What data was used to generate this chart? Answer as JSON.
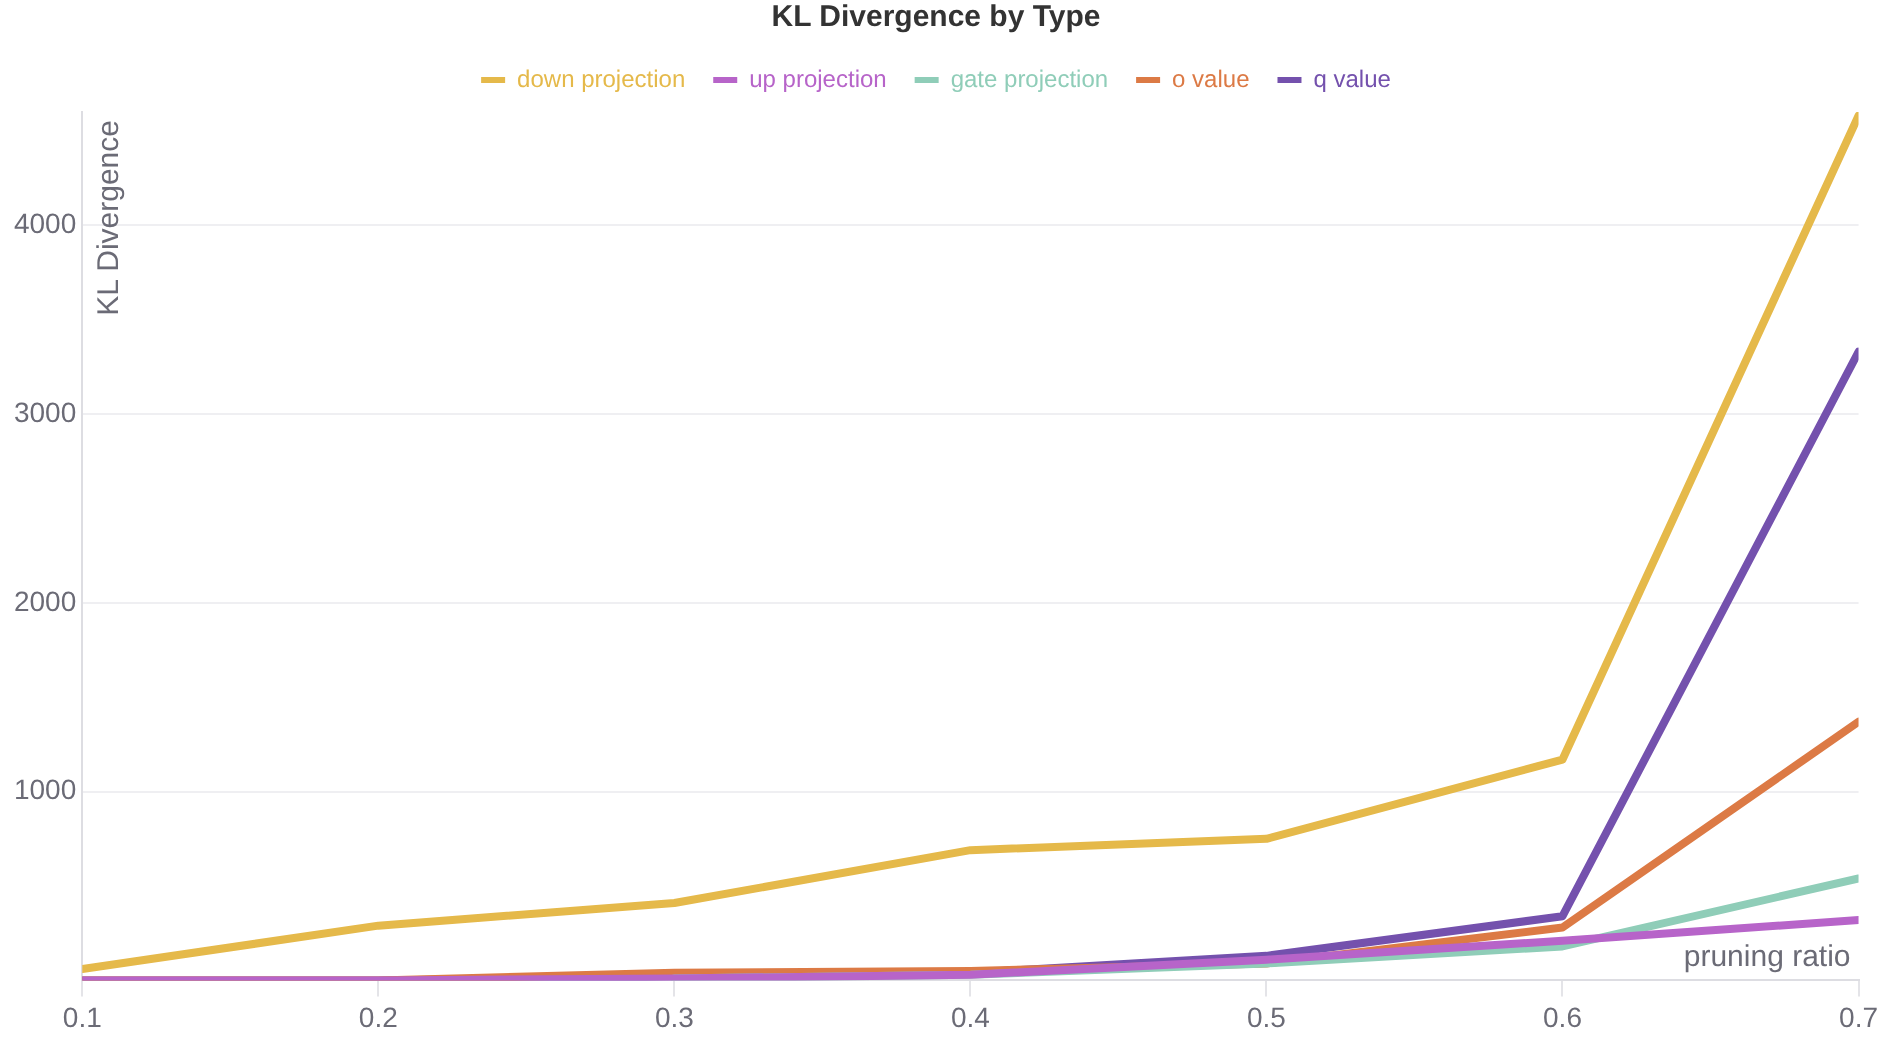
{
  "chart_data": {
    "type": "line",
    "title": "KL Divergence by Type",
    "xlabel": "pruning ratio",
    "ylabel": "KL Divergence",
    "x": [
      0.1,
      0.2,
      0.3,
      0.4,
      0.5,
      0.6,
      0.7
    ],
    "series": [
      {
        "name": "down projection",
        "color": "#e5b94a",
        "values": [
          60,
          290,
          410,
          690,
          750,
          1170,
          4580
        ]
      },
      {
        "name": "up projection",
        "color": "#b764c9",
        "values": [
          0,
          0,
          10,
          30,
          110,
          210,
          320
        ]
      },
      {
        "name": "gate projection",
        "color": "#8fcdb8",
        "values": [
          null,
          null,
          10,
          30,
          90,
          180,
          540
        ]
      },
      {
        "name": "o value",
        "color": "#dc7a45",
        "values": [
          0,
          0,
          40,
          50,
          90,
          280,
          1370
        ]
      },
      {
        "name": "q value",
        "color": "#7451ad",
        "values": [
          0,
          0,
          20,
          40,
          130,
          340,
          3330
        ]
      }
    ],
    "xlim": [
      0.1,
      0.7
    ],
    "xticks": [
      0.1,
      0.2,
      0.3,
      0.4,
      0.5,
      0.6,
      0.7
    ],
    "ylim": [
      0,
      4600
    ],
    "yticks": [
      1000,
      2000,
      3000,
      4000
    ],
    "grid": "y",
    "legend": "top",
    "marker": "none",
    "line_style": "solid"
  }
}
